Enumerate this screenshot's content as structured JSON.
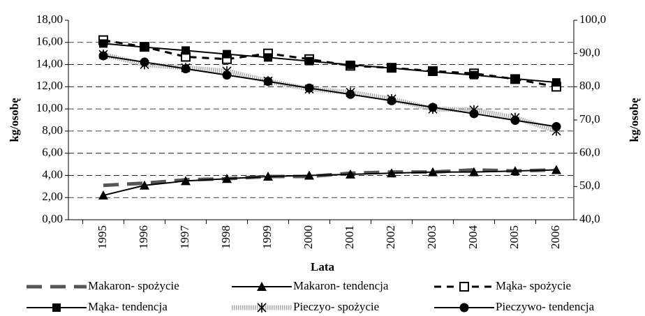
{
  "chart_data": {
    "type": "line",
    "x_label": "Lata",
    "y_label": "kg/osobę",
    "y2_label": "kg/osobę",
    "categories": [
      "1995",
      "1996",
      "1997",
      "1998",
      "1999",
      "2000",
      "2001",
      "2002",
      "2003",
      "2004",
      "2005",
      "2006"
    ],
    "ylim": [
      0,
      18
    ],
    "yticks": [
      {
        "value": 0,
        "label": "0,00"
      },
      {
        "value": 2,
        "label": "2,00"
      },
      {
        "value": 4,
        "label": "4,00"
      },
      {
        "value": 6,
        "label": "6,00"
      },
      {
        "value": 8,
        "label": "8,00"
      },
      {
        "value": 10,
        "label": "10,00"
      },
      {
        "value": 12,
        "label": "12,00"
      },
      {
        "value": 14,
        "label": "14,00"
      },
      {
        "value": 16,
        "label": "16,00"
      },
      {
        "value": 18,
        "label": "18,00"
      }
    ],
    "y2lim": [
      40,
      100
    ],
    "y2ticks": [
      {
        "value": 40,
        "label": "40,0"
      },
      {
        "value": 50,
        "label": "50,0"
      },
      {
        "value": 60,
        "label": "60,0"
      },
      {
        "value": 70,
        "label": "70,0"
      },
      {
        "value": 80,
        "label": "80,0"
      },
      {
        "value": 90,
        "label": "90,0"
      },
      {
        "value": 100,
        "label": "100,0"
      }
    ],
    "grid": true,
    "series": [
      {
        "name": "Makaron- spożycie",
        "color": "#555555",
        "line": "dashed",
        "marker": "none",
        "axis": "y",
        "values": [
          3.1,
          3.3,
          3.6,
          3.7,
          3.9,
          3.9,
          4.2,
          4.3,
          4.3,
          4.5,
          4.4,
          4.5
        ]
      },
      {
        "name": "Makaron- tendencja",
        "color": "#000000",
        "line": "solid",
        "marker": "triangle",
        "axis": "y",
        "values": [
          2.2,
          3.1,
          3.5,
          3.7,
          3.9,
          4.0,
          4.1,
          4.2,
          4.3,
          4.3,
          4.4,
          4.5
        ]
      },
      {
        "name": "Mąka- spożycie",
        "color": "#000000",
        "line": "dashed",
        "marker": "open-square",
        "axis": "y2",
        "values": [
          94.0,
          92.0,
          89.0,
          88.3,
          90.0,
          88.3,
          86.3,
          85.7,
          84.7,
          84.0,
          82.3,
          80.0
        ]
      },
      {
        "name": "Mąka- tendencja",
        "color": "#000000",
        "line": "solid",
        "marker": "square",
        "axis": "y2",
        "values": [
          93.0,
          91.9,
          90.9,
          89.8,
          88.8,
          87.7,
          86.6,
          85.6,
          84.5,
          83.5,
          82.4,
          81.3
        ]
      },
      {
        "name": "Pieczyo- spożycie",
        "color": "#aaaaaa",
        "line": "hatched",
        "marker": "x",
        "axis": "y2",
        "values": [
          89.7,
          86.7,
          85.7,
          84.7,
          81.7,
          79.3,
          78.3,
          76.3,
          73.3,
          73.0,
          70.7,
          66.7
        ]
      },
      {
        "name": "Pieczywo- tendencja",
        "color": "#000000",
        "line": "solid",
        "marker": "circle",
        "axis": "y2",
        "values": [
          89.3,
          87.4,
          85.4,
          83.5,
          81.6,
          79.6,
          77.7,
          75.8,
          73.8,
          71.9,
          69.9,
          68.0
        ]
      }
    ]
  }
}
